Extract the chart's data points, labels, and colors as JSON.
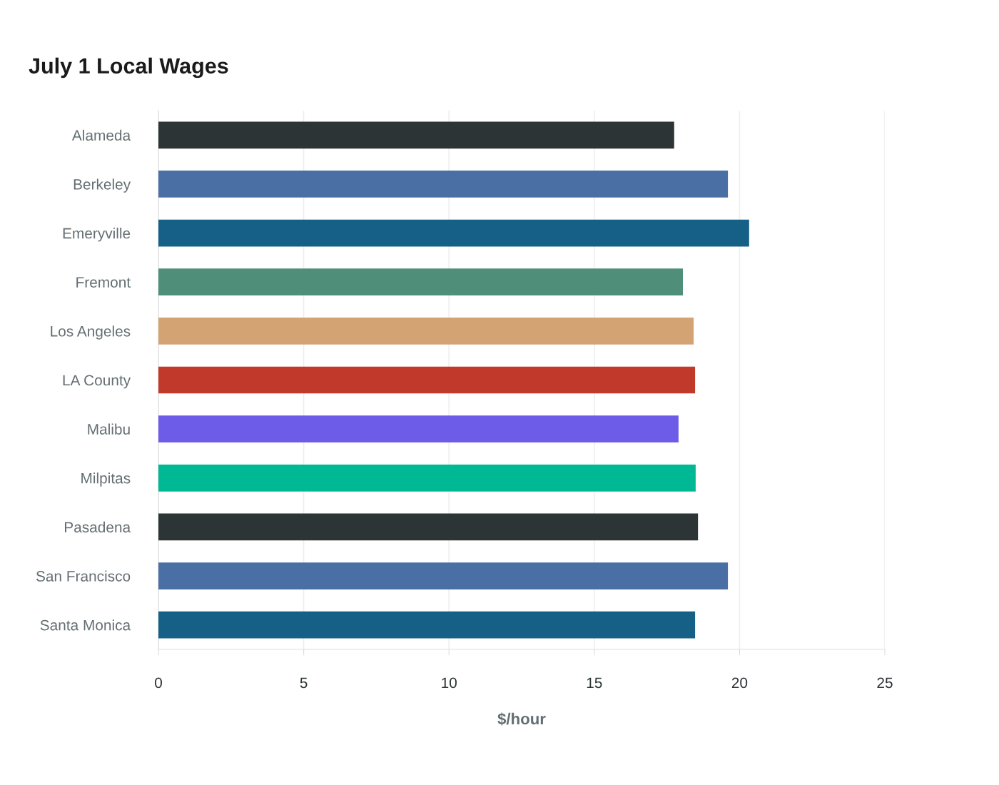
{
  "chart_data": {
    "type": "bar",
    "orientation": "horizontal",
    "title": "July 1 Local Wages",
    "xlabel": "$/hour",
    "categories": [
      "Alameda",
      "Berkeley",
      "Emeryville",
      "Fremont",
      "Los Angeles",
      "LA County",
      "Malibu",
      "Milpitas",
      "Pasadena",
      "San Francisco",
      "Santa Monica"
    ],
    "values": [
      17.75,
      19.6,
      20.33,
      18.05,
      18.42,
      18.47,
      17.9,
      18.49,
      18.57,
      19.6,
      18.47
    ],
    "colors": [
      "#2d3436",
      "#4a6fa5",
      "#166088",
      "#4f8f7a",
      "#d4a373",
      "#c0392b",
      "#6c5ce7",
      "#00b894",
      "#2d3436",
      "#4a6fa5",
      "#166088"
    ],
    "xlim": [
      0,
      25
    ],
    "xticks": [
      0,
      5,
      10,
      15,
      20,
      25
    ],
    "grid": "x"
  }
}
